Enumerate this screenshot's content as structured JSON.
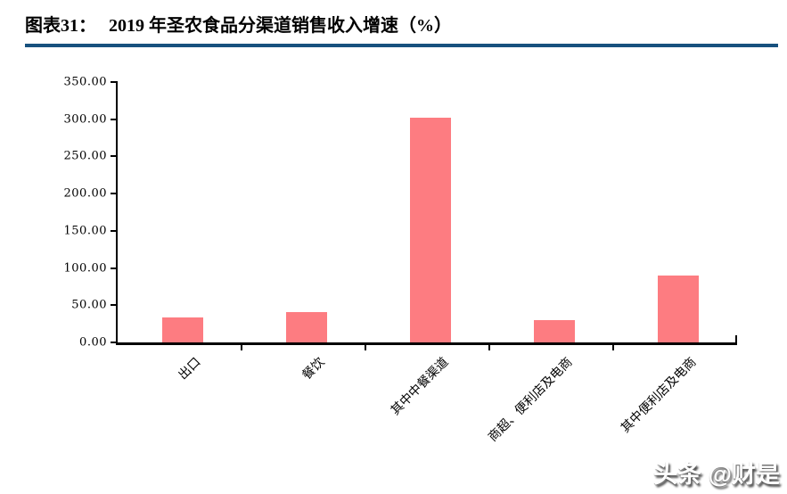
{
  "header": {
    "figure_label": "图表31：",
    "title": "2019 年圣农食品分渠道销售收入增速（%）"
  },
  "watermark": {
    "text": "头条 @财是"
  },
  "colors": {
    "bar": "#FD7C81",
    "title_rule": "#17517E",
    "axis": "#000000",
    "title_text": "#000000"
  },
  "chart_data": {
    "type": "bar",
    "title": "2019 年圣农食品分渠道销售收入增速（%）",
    "categories": [
      "出口",
      "餐饮",
      "其中中餐渠道",
      "商超、便利店及电商",
      "其中便利店及电商"
    ],
    "values": [
      33,
      41,
      302,
      30,
      90
    ],
    "unit": "%",
    "xlabel": "",
    "ylabel": "",
    "ylim": [
      0,
      350
    ],
    "ytick_step": 50,
    "ytick_labels": [
      "0.00",
      "50.00",
      "100.00",
      "150.00",
      "200.00",
      "250.00",
      "300.00",
      "350.00"
    ],
    "grid": false,
    "legend": "none",
    "bar_color": "#FD7C81"
  }
}
